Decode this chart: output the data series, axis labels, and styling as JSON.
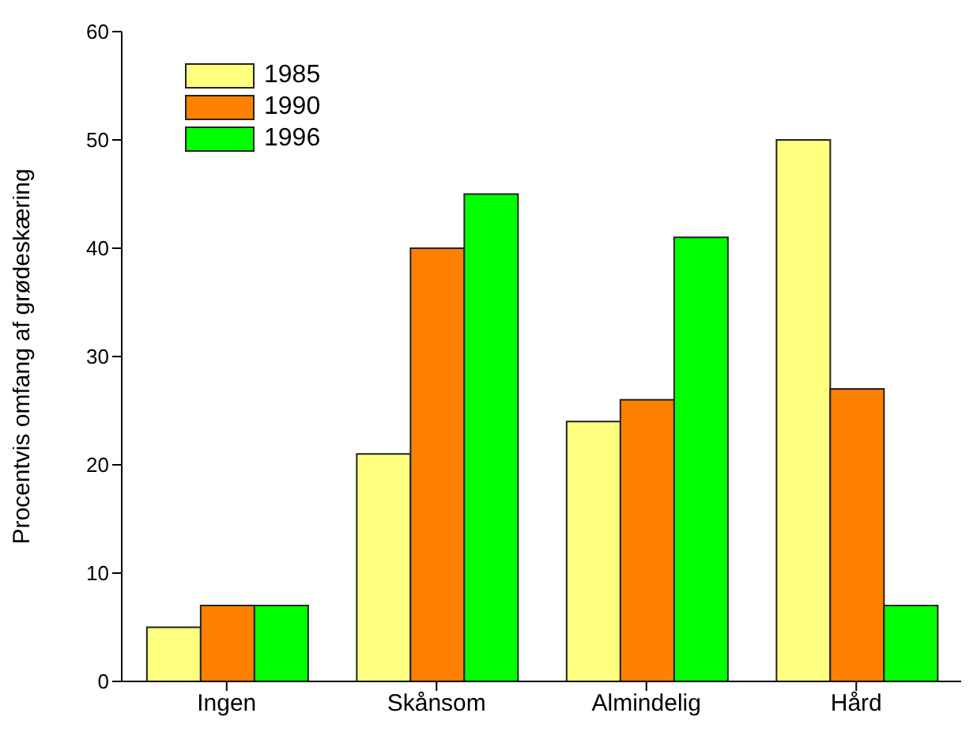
{
  "chart_data": {
    "type": "bar",
    "ylabel": "Procentvis omfang af grødeskæring",
    "categories": [
      "Ingen",
      "Skånsom",
      "Almindelig",
      "Hård"
    ],
    "series": [
      {
        "name": "1985",
        "color": "#ffff80",
        "values": [
          5,
          21,
          24,
          50
        ]
      },
      {
        "name": "1990",
        "color": "#ff8000",
        "values": [
          7,
          40,
          26,
          27
        ]
      },
      {
        "name": "1996",
        "color": "#00ff00",
        "values": [
          7,
          45,
          41,
          7
        ]
      }
    ],
    "ylim": [
      0,
      60
    ],
    "yticks": [
      0,
      10,
      20,
      30,
      40,
      50,
      60
    ],
    "grid": false,
    "legend": "top left"
  }
}
